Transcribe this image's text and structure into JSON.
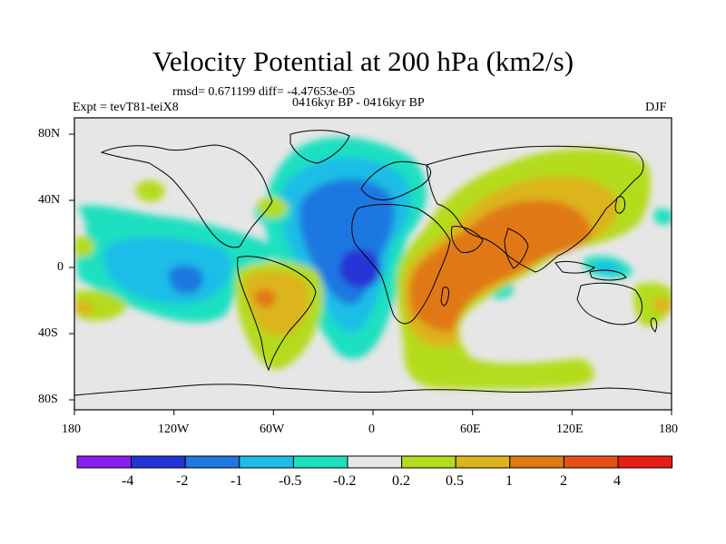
{
  "title": "Velocity Potential at 200 hPa (km2/s)",
  "stats": "rmsd= 0.671199 diff= -4.47653e-05",
  "experiment": "Expt = tevT81-teiX8",
  "period": "0416kyr BP - 0416kyr BP",
  "season": "DJF",
  "map": {
    "projection": "cylindrical equidistant",
    "lon_range": [
      -180,
      180
    ],
    "lat_range": [
      -90,
      90
    ],
    "lon_ticks": [
      "180",
      "120W",
      "60W",
      "0",
      "60E",
      "120E",
      "180"
    ],
    "lat_ticks": [
      "80N",
      "40N",
      "0",
      "40S",
      "80S"
    ]
  },
  "colorbar": {
    "colors": [
      "#8a1ef0",
      "#2534d6",
      "#1e78e0",
      "#1ebde6",
      "#1ee0c0",
      "#e6e6e6",
      "#b4dc1e",
      "#dcb41e",
      "#e07814",
      "#e65014",
      "#e61e14"
    ],
    "labels": [
      "-4",
      "-2",
      "-1",
      "-0.5",
      "-0.2",
      "0.2",
      "0.5",
      "1",
      "2",
      "4"
    ]
  },
  "colors": {
    "background": "#e6e6e6",
    "coast": "#000000"
  }
}
